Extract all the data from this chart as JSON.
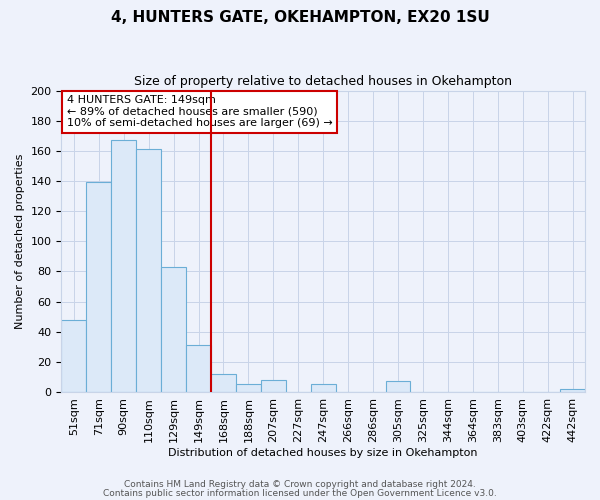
{
  "title": "4, HUNTERS GATE, OKEHAMPTON, EX20 1SU",
  "subtitle": "Size of property relative to detached houses in Okehampton",
  "xlabel": "Distribution of detached houses by size in Okehampton",
  "ylabel": "Number of detached properties",
  "bar_labels": [
    "51sqm",
    "71sqm",
    "90sqm",
    "110sqm",
    "129sqm",
    "149sqm",
    "168sqm",
    "188sqm",
    "207sqm",
    "227sqm",
    "247sqm",
    "266sqm",
    "286sqm",
    "305sqm",
    "325sqm",
    "344sqm",
    "364sqm",
    "383sqm",
    "403sqm",
    "422sqm",
    "442sqm"
  ],
  "bar_values": [
    48,
    139,
    167,
    161,
    83,
    31,
    12,
    5,
    8,
    0,
    5,
    0,
    0,
    7,
    0,
    0,
    0,
    0,
    0,
    0,
    2
  ],
  "bar_color": "#dce9f8",
  "bar_edge_color": "#6baed6",
  "vline_color": "#cc0000",
  "ylim": [
    0,
    200
  ],
  "yticks": [
    0,
    20,
    40,
    60,
    80,
    100,
    120,
    140,
    160,
    180,
    200
  ],
  "annotation_lines": [
    "4 HUNTERS GATE: 149sqm",
    "← 89% of detached houses are smaller (590)",
    "10% of semi-detached houses are larger (69) →"
  ],
  "annotation_box_color": "#ffffff",
  "annotation_box_edge": "#cc0000",
  "footer1": "Contains HM Land Registry data © Crown copyright and database right 2024.",
  "footer2": "Contains public sector information licensed under the Open Government Licence v3.0.",
  "background_color": "#eef2fb",
  "grid_color": "#c8d4e8",
  "title_fontsize": 11,
  "subtitle_fontsize": 9,
  "axis_label_fontsize": 8,
  "tick_fontsize": 8,
  "annotation_fontsize": 8,
  "footer_fontsize": 6.5
}
